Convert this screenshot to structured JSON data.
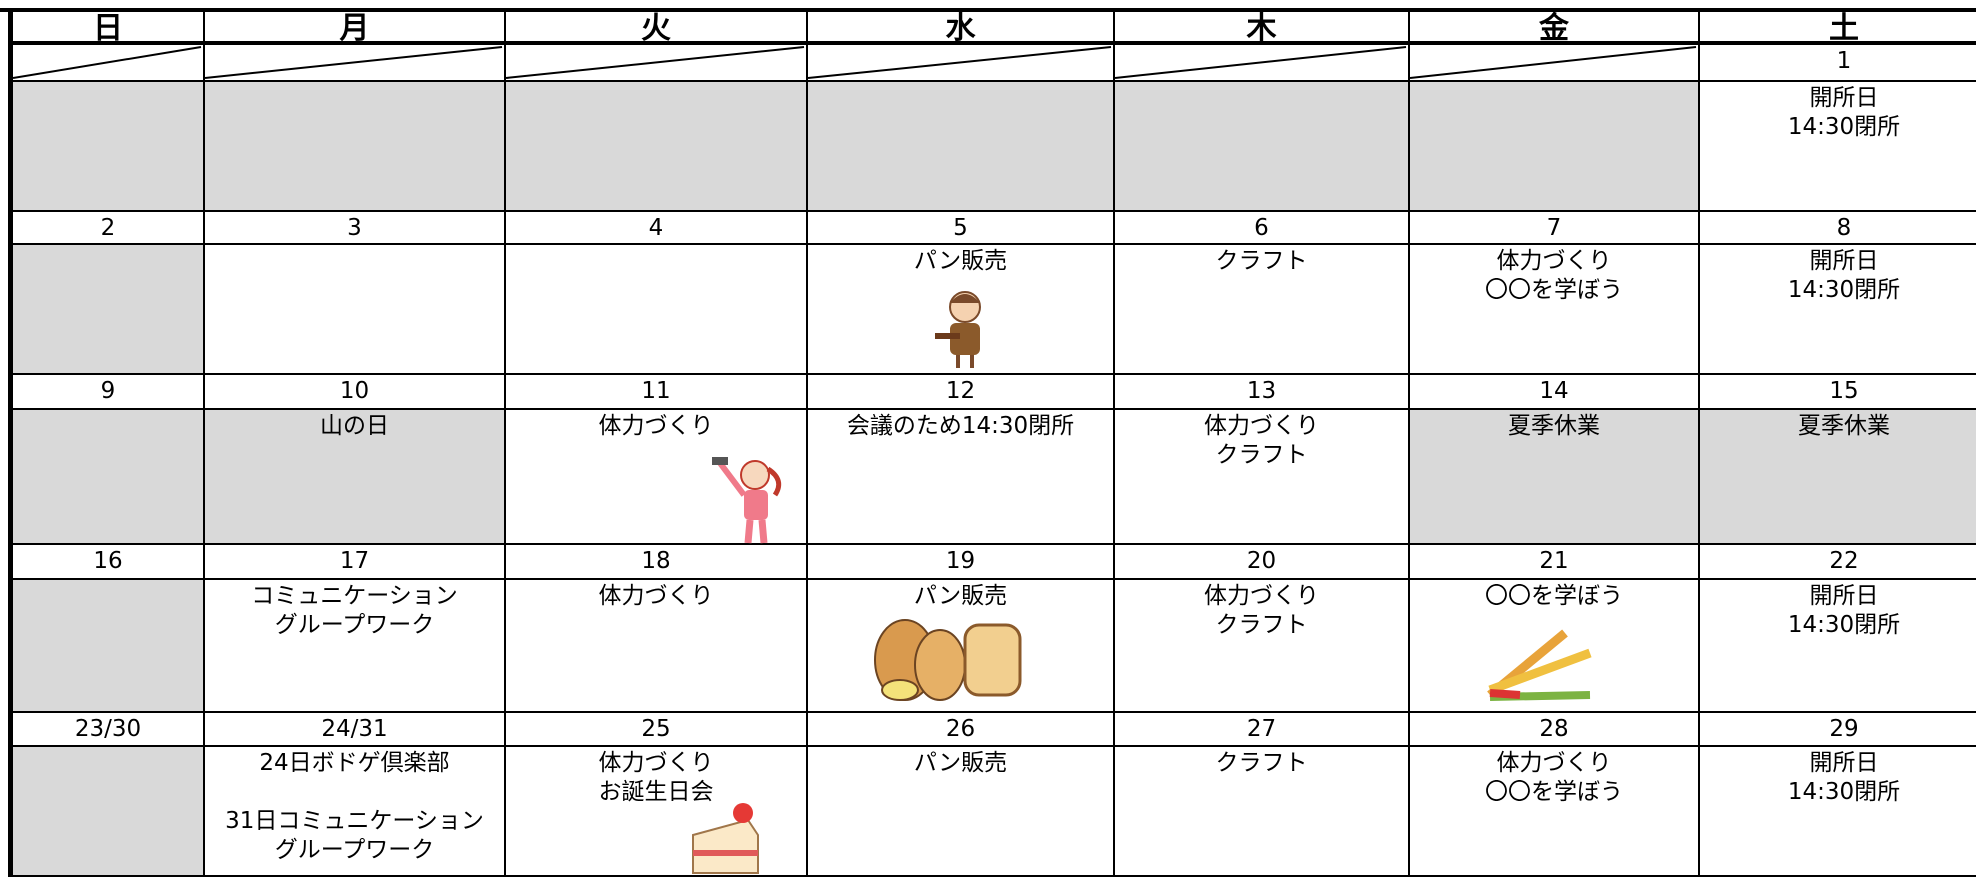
{
  "header": {
    "days": [
      "日",
      "月",
      "火",
      "水",
      "木",
      "金",
      "土"
    ]
  },
  "weeks": [
    {
      "dates": [
        null,
        null,
        null,
        null,
        null,
        null,
        "1"
      ],
      "cells": [
        {
          "closed": true,
          "text": []
        },
        {
          "closed": true,
          "text": []
        },
        {
          "closed": true,
          "text": []
        },
        {
          "closed": true,
          "text": []
        },
        {
          "closed": true,
          "text": []
        },
        {
          "closed": true,
          "text": []
        },
        {
          "closed": false,
          "text": [
            [
              "開所日",
              "14:30閉所"
            ]
          ]
        }
      ]
    },
    {
      "dates": [
        "2",
        "3",
        "4",
        "5",
        "6",
        "7",
        "8"
      ],
      "cells": [
        {
          "closed": true,
          "text": []
        },
        {
          "closed": false,
          "text": []
        },
        {
          "closed": false,
          "text": []
        },
        {
          "closed": false,
          "text": [
            [
              "パン販売"
            ]
          ]
        },
        {
          "closed": false,
          "text": [
            [
              "クラフト"
            ]
          ]
        },
        {
          "closed": false,
          "text": [
            [
              "体力づくり",
              "〇〇を学ぼう"
            ]
          ]
        },
        {
          "closed": false,
          "text": [
            [
              "開所日",
              "14:30閉所"
            ]
          ]
        }
      ]
    },
    {
      "dates": [
        "9",
        "10",
        "11",
        "12",
        "13",
        "14",
        "15"
      ],
      "cells": [
        {
          "closed": true,
          "text": []
        },
        {
          "closed": true,
          "text": [
            [
              "山の日"
            ]
          ]
        },
        {
          "closed": false,
          "text": [
            [
              "体力づくり"
            ]
          ]
        },
        {
          "closed": false,
          "text": [
            [
              "会議のため14:30閉所"
            ]
          ]
        },
        {
          "closed": false,
          "text": [
            [
              "体力づくり",
              "クラフト"
            ]
          ]
        },
        {
          "closed": true,
          "text": [
            [
              "夏季休業"
            ]
          ]
        },
        {
          "closed": true,
          "text": [
            [
              "夏季休業"
            ]
          ]
        }
      ]
    },
    {
      "dates": [
        "16",
        "17",
        "18",
        "19",
        "20",
        "21",
        "22"
      ],
      "cells": [
        {
          "closed": true,
          "text": []
        },
        {
          "closed": false,
          "text": [
            [
              "コミュニケーション",
              "グループワーク"
            ]
          ]
        },
        {
          "closed": false,
          "text": [
            [
              "体力づくり"
            ]
          ]
        },
        {
          "closed": false,
          "text": [
            [
              "パン販売"
            ]
          ]
        },
        {
          "closed": false,
          "text": [
            [
              "体力づくり",
              "クラフト"
            ]
          ]
        },
        {
          "closed": false,
          "text": [
            [
              "〇〇を学ぼう"
            ]
          ]
        },
        {
          "closed": false,
          "text": [
            [
              "開所日",
              "14:30閉所"
            ]
          ]
        }
      ]
    },
    {
      "dates": [
        "23/30",
        "24/31",
        "25",
        "26",
        "27",
        "28",
        "29"
      ],
      "cells": [
        {
          "closed": true,
          "text": []
        },
        {
          "closed": false,
          "text": [
            [
              "24日ボドゲ倶楽部"
            ],
            [
              "31日コミュニケーション",
              "グループワーク"
            ]
          ]
        },
        {
          "closed": false,
          "text": [
            [
              "体力づくり",
              "お誕生日会"
            ]
          ]
        },
        {
          "closed": false,
          "text": [
            [
              "パン販売"
            ]
          ]
        },
        {
          "closed": false,
          "text": [
            [
              "クラフト"
            ]
          ]
        },
        {
          "closed": false,
          "text": [
            [
              "体力づくり",
              "〇〇を学ぼう"
            ]
          ]
        },
        {
          "closed": false,
          "text": [
            [
              "開所日",
              "14:30閉所"
            ]
          ]
        }
      ]
    }
  ]
}
